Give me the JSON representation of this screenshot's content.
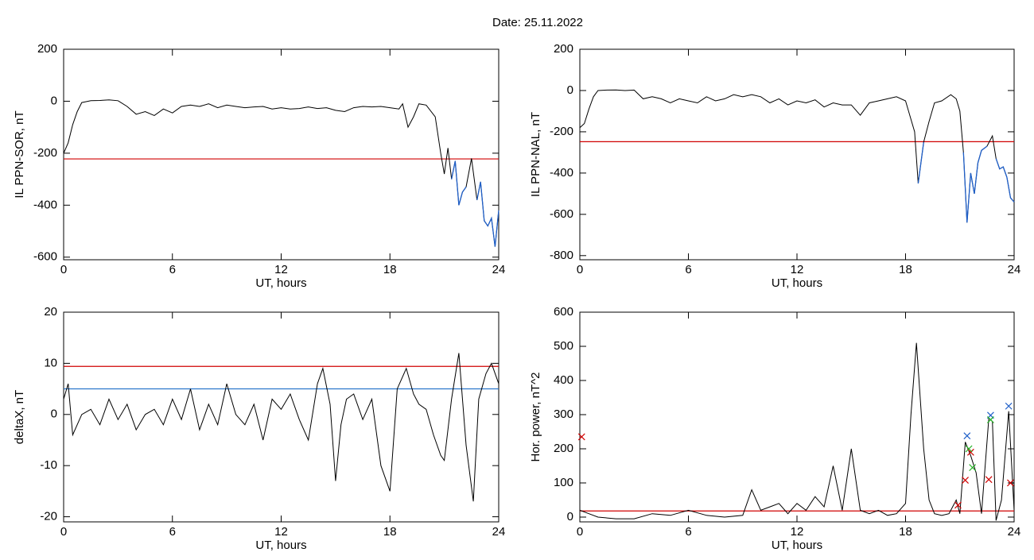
{
  "title": "Date:  25.11.2022",
  "chart_data": [
    {
      "type": "line",
      "ylabel": "IL PPN-SOR, nT",
      "xlabel": "UT, hours",
      "xlim": [
        0,
        24
      ],
      "xticks": [
        0,
        6,
        12,
        18,
        24
      ],
      "ylim": [
        -610,
        200
      ],
      "yticks": [
        200,
        0,
        -200,
        -400,
        -600
      ],
      "hlines": [
        {
          "value": -222,
          "color": "#d00000"
        }
      ],
      "highlight_color": "#1f5fc8",
      "series": [
        {
          "color": "#000000",
          "x": [
            0,
            0.25,
            0.5,
            0.75,
            1,
            1.5,
            2,
            2.5,
            3,
            3.5,
            4,
            4.5,
            5,
            5.5,
            6,
            6.5,
            7,
            7.5,
            8,
            8.5,
            9,
            9.5,
            10,
            10.5,
            11,
            11.5,
            12,
            12.5,
            13,
            13.5,
            14,
            14.5,
            15,
            15.5,
            16,
            16.5,
            17,
            17.5,
            18,
            18.5,
            18.7,
            19,
            19.3,
            19.6,
            20,
            20.5,
            20.8,
            21,
            21.2,
            21.4,
            21.6,
            21.8,
            22,
            22.2,
            22.5,
            22.8,
            23,
            23.2,
            23.4,
            23.6,
            23.8,
            24
          ],
          "values": [
            -200,
            -160,
            -90,
            -40,
            -5,
            2,
            3,
            5,
            2,
            -20,
            -50,
            -40,
            -55,
            -30,
            -45,
            -20,
            -15,
            -20,
            -10,
            -25,
            -15,
            -20,
            -25,
            -22,
            -20,
            -30,
            -25,
            -30,
            -28,
            -22,
            -28,
            -25,
            -35,
            -40,
            -25,
            -20,
            -22,
            -20,
            -25,
            -30,
            -10,
            -100,
            -60,
            -10,
            -15,
            -60,
            -200,
            -280,
            -180,
            -300,
            -230,
            -400,
            -350,
            -330,
            -220,
            -380,
            -310,
            -460,
            -480,
            -450,
            -560,
            -420
          ]
        }
      ]
    },
    {
      "type": "line",
      "ylabel": "IL PPN-NAL, nT",
      "xlabel": "UT, hours",
      "xlim": [
        0,
        24
      ],
      "xticks": [
        0,
        6,
        12,
        18,
        24
      ],
      "ylim": [
        -820,
        200
      ],
      "yticks": [
        200,
        0,
        -200,
        -400,
        -600,
        -800
      ],
      "hlines": [
        {
          "value": -248,
          "color": "#d00000"
        }
      ],
      "highlight_color": "#1f5fc8",
      "series": [
        {
          "color": "#000000",
          "x": [
            0,
            0.25,
            0.5,
            0.75,
            1,
            1.5,
            2,
            2.5,
            3,
            3.5,
            4,
            4.5,
            5,
            5.5,
            6,
            6.5,
            7,
            7.5,
            8,
            8.5,
            9,
            9.5,
            10,
            10.5,
            11,
            11.5,
            12,
            12.5,
            13,
            13.5,
            14,
            14.5,
            15,
            15.5,
            16,
            16.5,
            17,
            17.5,
            18,
            18.5,
            18.7,
            19,
            19.3,
            19.6,
            20,
            20.5,
            20.8,
            21,
            21.2,
            21.4,
            21.6,
            21.8,
            22,
            22.2,
            22.5,
            22.8,
            23,
            23.2,
            23.4,
            23.6,
            23.8,
            24
          ],
          "values": [
            -180,
            -160,
            -90,
            -30,
            0,
            2,
            3,
            0,
            2,
            -40,
            -30,
            -40,
            -60,
            -40,
            -50,
            -60,
            -30,
            -50,
            -40,
            -20,
            -30,
            -20,
            -30,
            -60,
            -40,
            -70,
            -50,
            -60,
            -45,
            -80,
            -60,
            -70,
            -70,
            -120,
            -60,
            -50,
            -40,
            -30,
            -50,
            -200,
            -450,
            -250,
            -150,
            -60,
            -50,
            -20,
            -40,
            -100,
            -300,
            -640,
            -400,
            -500,
            -350,
            -290,
            -270,
            -220,
            -330,
            -380,
            -370,
            -420,
            -520,
            -540
          ]
        }
      ]
    },
    {
      "type": "line",
      "ylabel": "deltaX, nT",
      "xlabel": "UT, hours",
      "xlim": [
        0,
        24
      ],
      "xticks": [
        0,
        6,
        12,
        18,
        24
      ],
      "ylim": [
        -21,
        20
      ],
      "yticks": [
        20,
        10,
        0,
        -10,
        -20
      ],
      "hlines": [
        {
          "value": 9.4,
          "color": "#d00000"
        },
        {
          "value": 5,
          "color": "#1f6fc8"
        }
      ],
      "series": [
        {
          "color": "#000000",
          "x": [
            0,
            0.25,
            0.5,
            1,
            1.5,
            2,
            2.5,
            3,
            3.5,
            4,
            4.5,
            5,
            5.5,
            6,
            6.5,
            7,
            7.5,
            8,
            8.5,
            9,
            9.5,
            10,
            10.5,
            11,
            11.5,
            12,
            12.5,
            13,
            13.5,
            14,
            14.3,
            14.7,
            15,
            15.3,
            15.6,
            16,
            16.5,
            17,
            17.5,
            18,
            18.4,
            18.9,
            19.3,
            19.6,
            20,
            20.4,
            20.8,
            21,
            21.4,
            21.8,
            22.2,
            22.6,
            22.9,
            23.3,
            23.6,
            24
          ],
          "values": [
            3,
            6,
            -4,
            0,
            1,
            -2,
            3,
            -1,
            2,
            -3,
            0,
            1,
            -2,
            3,
            -1,
            5,
            -3,
            2,
            -2,
            6,
            0,
            -2,
            2,
            -5,
            3,
            1,
            4,
            -1,
            -5,
            6,
            9,
            2,
            -13,
            -2,
            3,
            4,
            -1,
            3,
            -10,
            -15,
            5,
            9,
            4,
            2,
            1,
            -4,
            -8,
            -9,
            3,
            12,
            -6,
            -17,
            3,
            8,
            10,
            6
          ]
        }
      ]
    },
    {
      "type": "line",
      "ylabel": "Hor. power, nT^2",
      "xlabel": "UT, hours",
      "xlim": [
        0,
        24
      ],
      "xticks": [
        0,
        6,
        12,
        18,
        24
      ],
      "ylim": [
        -14,
        600
      ],
      "yticks": [
        600,
        500,
        400,
        300,
        200,
        100,
        0
      ],
      "hlines": [
        {
          "value": 18,
          "color": "#d00000"
        }
      ],
      "series": [
        {
          "color": "#000000",
          "x": [
            0,
            0.5,
            1,
            2,
            3,
            4,
            5,
            6,
            7,
            8,
            9,
            9.5,
            10,
            10.5,
            11,
            11.5,
            12,
            12.5,
            13,
            13.5,
            14,
            14.5,
            15,
            15.5,
            16,
            16.5,
            17,
            17.5,
            18,
            18.3,
            18.6,
            19,
            19.3,
            19.6,
            20,
            20.4,
            20.8,
            21,
            21.3,
            21.6,
            21.9,
            22.2,
            22.6,
            22.8,
            23,
            23.3,
            23.7,
            24
          ],
          "values": [
            20,
            10,
            0,
            -5,
            -5,
            10,
            5,
            20,
            5,
            0,
            5,
            80,
            20,
            30,
            40,
            10,
            40,
            20,
            60,
            30,
            150,
            20,
            200,
            20,
            10,
            20,
            5,
            10,
            40,
            300,
            510,
            200,
            50,
            10,
            5,
            10,
            50,
            10,
            220,
            180,
            130,
            10,
            290,
            280,
            -10,
            50,
            310,
            20
          ]
        }
      ],
      "markers": [
        {
          "color": "#d00000",
          "x": [
            0.1,
            20.9,
            21.3,
            21.6,
            22.6,
            23.8
          ],
          "values": [
            235,
            35,
            108,
            190,
            110,
            100
          ]
        },
        {
          "color": "#1f5fc8",
          "x": [
            21.4,
            22.7,
            23.7
          ],
          "values": [
            238,
            298,
            325
          ]
        },
        {
          "color": "#20b020",
          "x": [
            21.5,
            21.7,
            22.7
          ],
          "values": [
            200,
            145,
            285
          ]
        }
      ]
    }
  ]
}
